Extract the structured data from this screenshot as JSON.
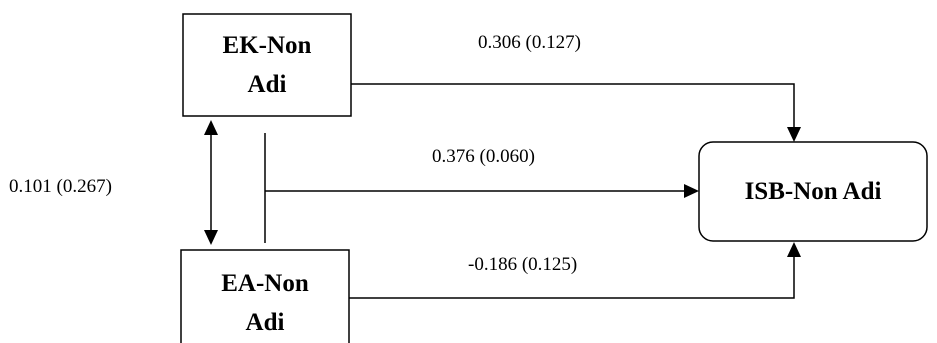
{
  "nodes": {
    "ek": {
      "line1": "EK-Non",
      "line2": "Adi"
    },
    "ea": {
      "line1": "EA-Non",
      "line2": "Adi"
    },
    "isb": {
      "label": "ISB-Non Adi"
    }
  },
  "edges": {
    "ek_to_isb": "0.306 (0.127)",
    "combined_to_isb": "0.376 (0.060)",
    "ea_to_isb": "-0.186 (0.125)",
    "ek_ea_correlation": "0.101 (0.267)"
  }
}
